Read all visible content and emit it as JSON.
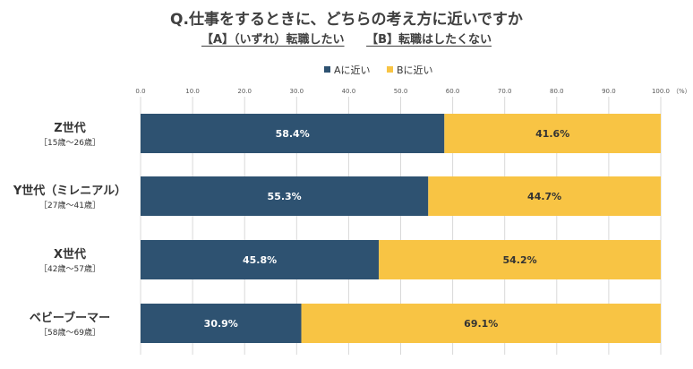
{
  "chart_data": {
    "type": "bar",
    "orientation": "horizontal",
    "stacked": true,
    "title": "Q.仕事をするときに、どちらの考え方に近いですか",
    "subtitle_a": "【A】（いずれ）転職したい",
    "subtitle_b": "【B】転職はしたくない",
    "categories": [
      {
        "name": "Z世代",
        "sub": "［15歳～26歳］"
      },
      {
        "name": "Y世代（ミレニアル）",
        "sub": "［27歳～41歳］"
      },
      {
        "name": "X世代",
        "sub": "［42歳～57歳］"
      },
      {
        "name": "ベビーブーマー",
        "sub": "［58歳～69歳］"
      }
    ],
    "series": [
      {
        "name": "Aに近い",
        "color": "#2e5271",
        "label_color": "#ffffff",
        "values": [
          58.4,
          55.3,
          45.8,
          30.9
        ],
        "labels": [
          "58.4%",
          "55.3%",
          "45.8%",
          "30.9%"
        ]
      },
      {
        "name": "Bに近い",
        "color": "#f8c444",
        "label_color": "#333333",
        "values": [
          41.6,
          44.7,
          54.2,
          69.1
        ],
        "labels": [
          "41.6%",
          "44.7%",
          "54.2%",
          "69.1%"
        ]
      }
    ],
    "xlim": [
      0,
      100
    ],
    "xticks": [
      "0.0",
      "10.0",
      "20.0",
      "30.0",
      "40.0",
      "50.0",
      "60.0",
      "70.0",
      "80.0",
      "90.0",
      "100.0"
    ],
    "unit": "（%）",
    "legend_position": "top-center",
    "grid": true
  }
}
